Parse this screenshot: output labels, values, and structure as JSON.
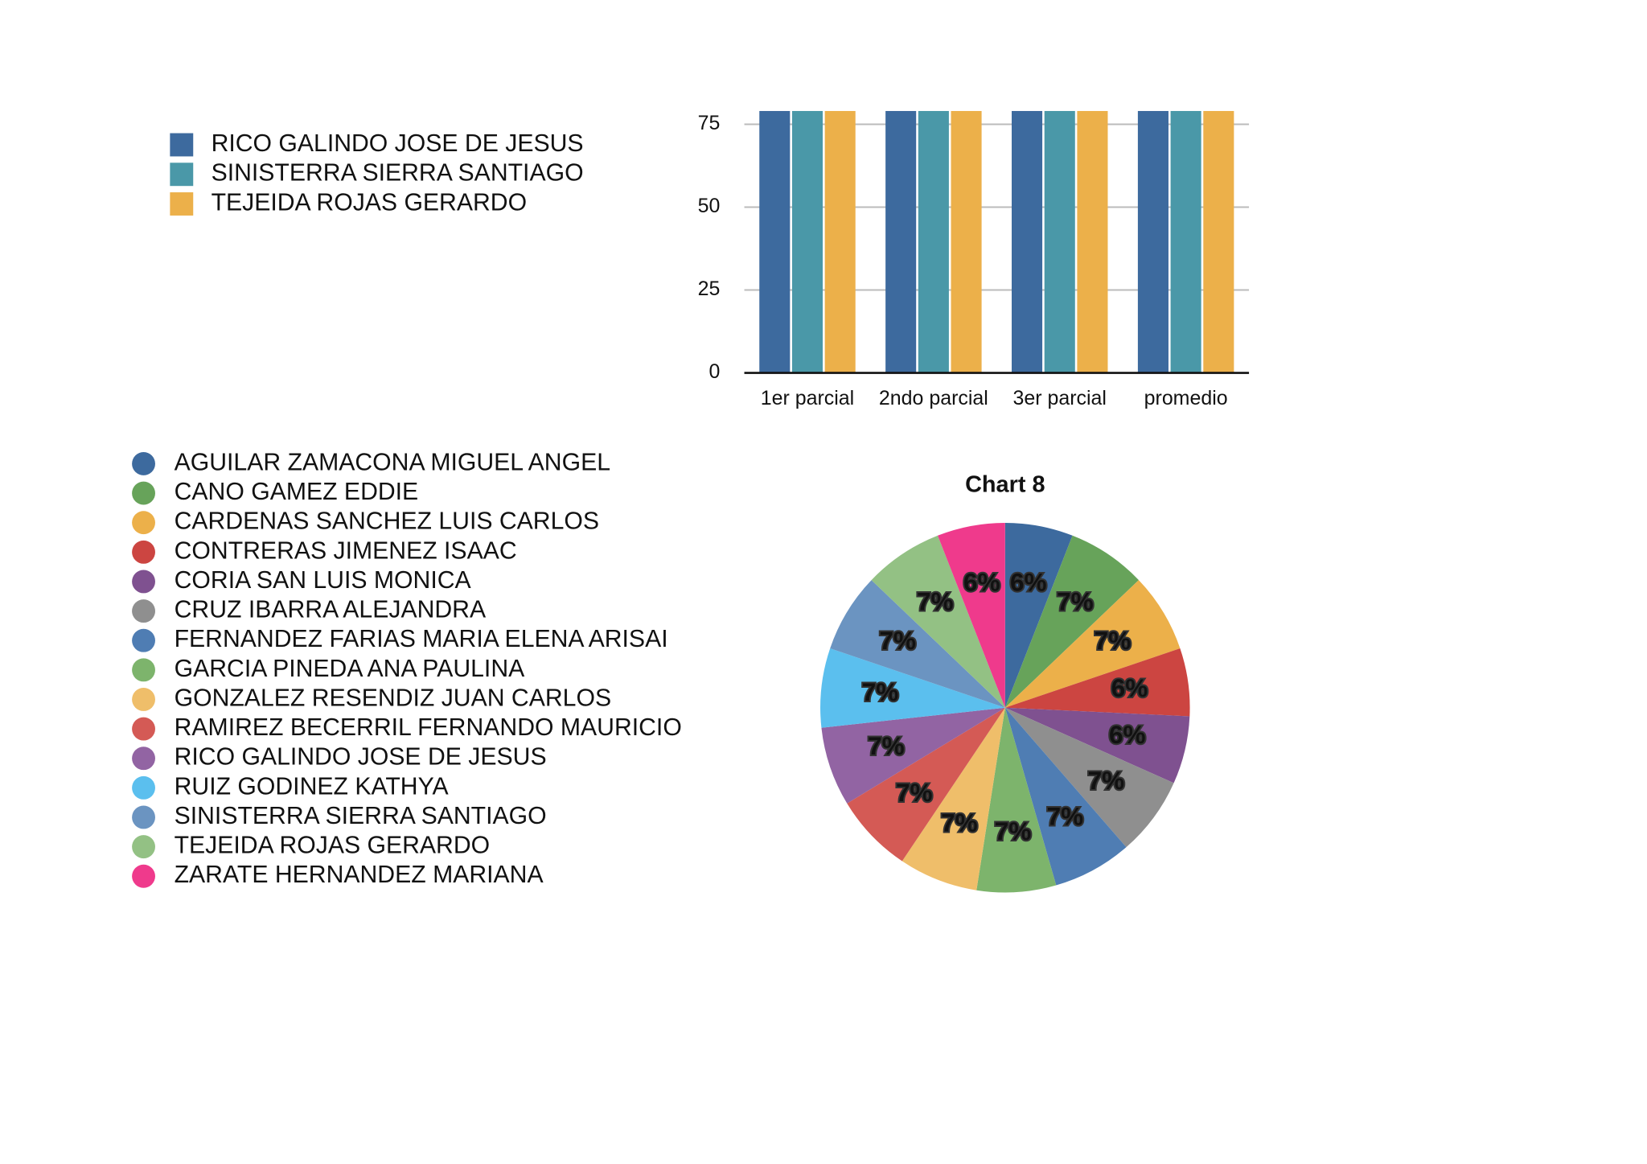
{
  "chart_data": [
    {
      "type": "bar",
      "categories": [
        "1er parcial",
        "2ndo  parcial",
        "3er parcial",
        "promedio"
      ],
      "series": [
        {
          "name": "RICO GALINDO JOSE DE JESUS",
          "color": "#3d6a9e",
          "values": [
            79,
            79,
            79,
            79
          ]
        },
        {
          "name": "SINISTERRA SIERRA SANTIAGO",
          "color": "#4a98a8",
          "values": [
            79,
            79,
            79,
            79
          ]
        },
        {
          "name": "TEJEIDA ROJAS GERARDO",
          "color": "#ecb04a",
          "values": [
            79,
            79,
            79,
            79
          ]
        }
      ],
      "ylim": [
        0,
        79
      ],
      "yticks": [
        0,
        25,
        50,
        75
      ],
      "grid": true,
      "legend": "left"
    },
    {
      "type": "pie",
      "title": "Chart 8",
      "categories": [
        "AGUILAR ZAMACONA MIGUEL ANGEL",
        "CANO GAMEZ EDDIE",
        "CARDENAS SANCHEZ LUIS CARLOS",
        "CONTRERAS JIMENEZ ISAAC",
        "CORIA SAN LUIS MONICA",
        "CRUZ IBARRA ALEJANDRA",
        "FERNANDEZ FARIAS MARIA ELENA ARISAI",
        "GARCIA PINEDA ANA PAULINA",
        "GONZALEZ RESENDIZ JUAN CARLOS",
        "RAMIREZ BECERRIL FERNANDO MAURICIO",
        "RICO GALINDO JOSE DE JESUS",
        "RUIZ GODINEZ KATHYA",
        "SINISTERRA SIERRA SANTIAGO",
        "TEJEIDA ROJAS GERARDO",
        "ZARATE HERNANDEZ MARIANA"
      ],
      "values": [
        6,
        7,
        7,
        6,
        6,
        7,
        7,
        7,
        7,
        7,
        7,
        7,
        7,
        7,
        6
      ],
      "value_labels": [
        "6%",
        "7%",
        "7%",
        "6%",
        "6%",
        "7%",
        "7%",
        "7%",
        "7%",
        "7%",
        "7%",
        "7%",
        "7%",
        "7%",
        "6%"
      ],
      "colors": [
        "#3d6a9e",
        "#67a35a",
        "#ecb04a",
        "#cc4541",
        "#7f5190",
        "#8f8f8f",
        "#4f7db3",
        "#7db46c",
        "#efbe6a",
        "#d45a55",
        "#9264a3",
        "#5bbfee",
        "#6b94c1",
        "#93c184",
        "#ef3a8c"
      ],
      "legend": "left"
    }
  ]
}
